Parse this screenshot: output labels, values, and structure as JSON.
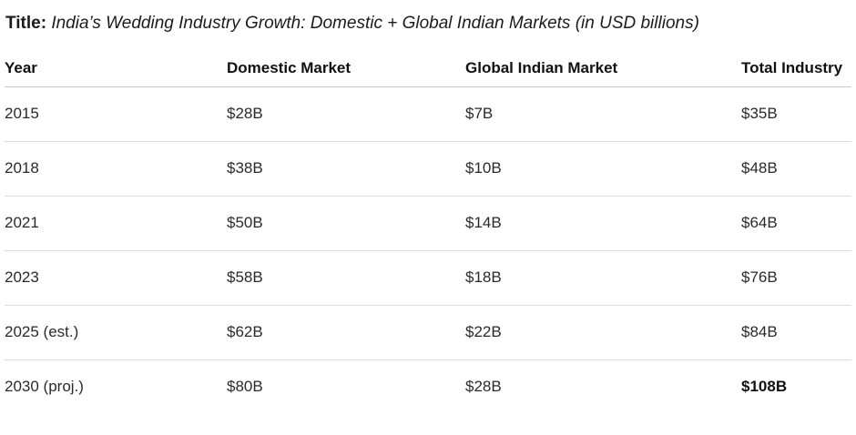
{
  "title": {
    "label": "Title:",
    "text": "India’s Wedding Industry Growth: Domestic + Global Indian Markets (in USD billions)"
  },
  "table": {
    "columns": [
      "Year",
      "Domestic Market",
      "Global Indian Market",
      "Total Industry"
    ],
    "rows": [
      {
        "year": "2015",
        "domestic": "$28B",
        "global": "$7B",
        "total": "$35B"
      },
      {
        "year": "2018",
        "domestic": "$38B",
        "global": "$10B",
        "total": "$48B"
      },
      {
        "year": "2021",
        "domestic": "$50B",
        "global": "$14B",
        "total": "$64B"
      },
      {
        "year": "2023",
        "domestic": "$58B",
        "global": "$18B",
        "total": "$76B"
      },
      {
        "year": "2025 (est.)",
        "domestic": "$62B",
        "global": "$22B",
        "total": "$84B"
      },
      {
        "year": "2030 (proj.)",
        "domestic": "$80B",
        "global": "$28B",
        "total": "$108B"
      }
    ]
  },
  "chart_data": {
    "type": "table",
    "title": "India’s Wedding Industry Growth: Domestic + Global Indian Markets (in USD billions)",
    "categories": [
      "2015",
      "2018",
      "2021",
      "2023",
      "2025 (est.)",
      "2030 (proj.)"
    ],
    "series": [
      {
        "name": "Domestic Market",
        "values": [
          28,
          38,
          50,
          58,
          62,
          80
        ]
      },
      {
        "name": "Global Indian Market",
        "values": [
          7,
          10,
          14,
          18,
          22,
          28
        ]
      },
      {
        "name": "Total Industry",
        "values": [
          35,
          48,
          64,
          76,
          84,
          108
        ]
      }
    ],
    "unit": "USD billions"
  },
  "colors": {
    "bottom_bar": "#2e74b5",
    "header_divider": "#c9c9c9",
    "row_divider": "#dcdcdc"
  }
}
